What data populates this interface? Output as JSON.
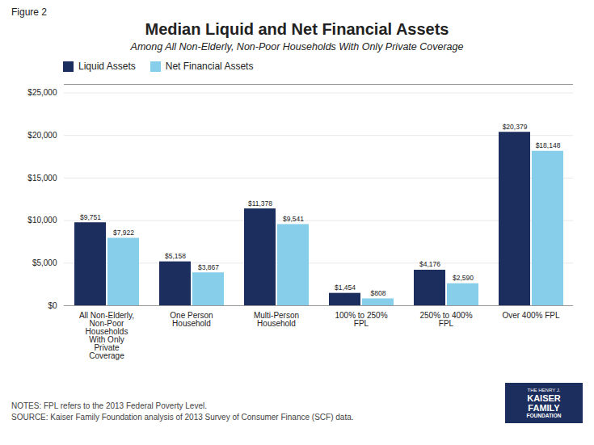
{
  "chart_data": {
    "type": "bar",
    "title": "Median Liquid and Net Financial Assets",
    "subtitle": "Among All Non-Elderly, Non-Poor Households With Only Private Coverage",
    "annotations": [
      "Figure 2",
      "NOTES: FPL refers to the 2013 Federal Poverty Level.",
      "SOURCE: Kaiser Family Foundation analysis of 2013 Survey of Consumer Finance (SCF) data.",
      [
        "THE HENRY J.",
        "KAISER",
        "FAMILY",
        "FOUNDATION"
      ]
    ],
    "categories": [
      "All Non-Elderly,\nNon-Poor\nHouseholds\nWith Only\nPrivate\nCoverage",
      "One Person\nHousehold",
      "Multi-Person\nHousehold",
      "100% to 250%\nFPL",
      "250% to 400%\nFPL",
      "Over 400% FPL"
    ],
    "series": [
      {
        "name": "Liquid Assets",
        "color": "#1C2E5E",
        "values": [
          9751,
          5158,
          11378,
          1454,
          4176,
          20379
        ],
        "value_labels": [
          "$9,751",
          "$5,158",
          "$11,378",
          "$1,454",
          "$4,176",
          "$20,379"
        ]
      },
      {
        "name": "Net Financial Assets",
        "color": "#87CEEB",
        "values": [
          7922,
          3867,
          9541,
          808,
          2590,
          18148
        ],
        "value_labels": [
          "$7,922",
          "$3,867",
          "$9,541",
          "$808",
          "$2,590",
          "$18,148"
        ]
      }
    ],
    "ylim": [
      0,
      26000
    ],
    "yticks": [
      {
        "value": 0,
        "label": "$0"
      },
      {
        "value": 5000,
        "label": "$5,000"
      },
      {
        "value": 10000,
        "label": "$10,000"
      },
      {
        "value": 15000,
        "label": "$15,000"
      },
      {
        "value": 20000,
        "label": "$20,000"
      },
      {
        "value": 25000,
        "label": "$25,000"
      }
    ],
    "grid": true,
    "legend": "upper left",
    "data_labels": true
  }
}
